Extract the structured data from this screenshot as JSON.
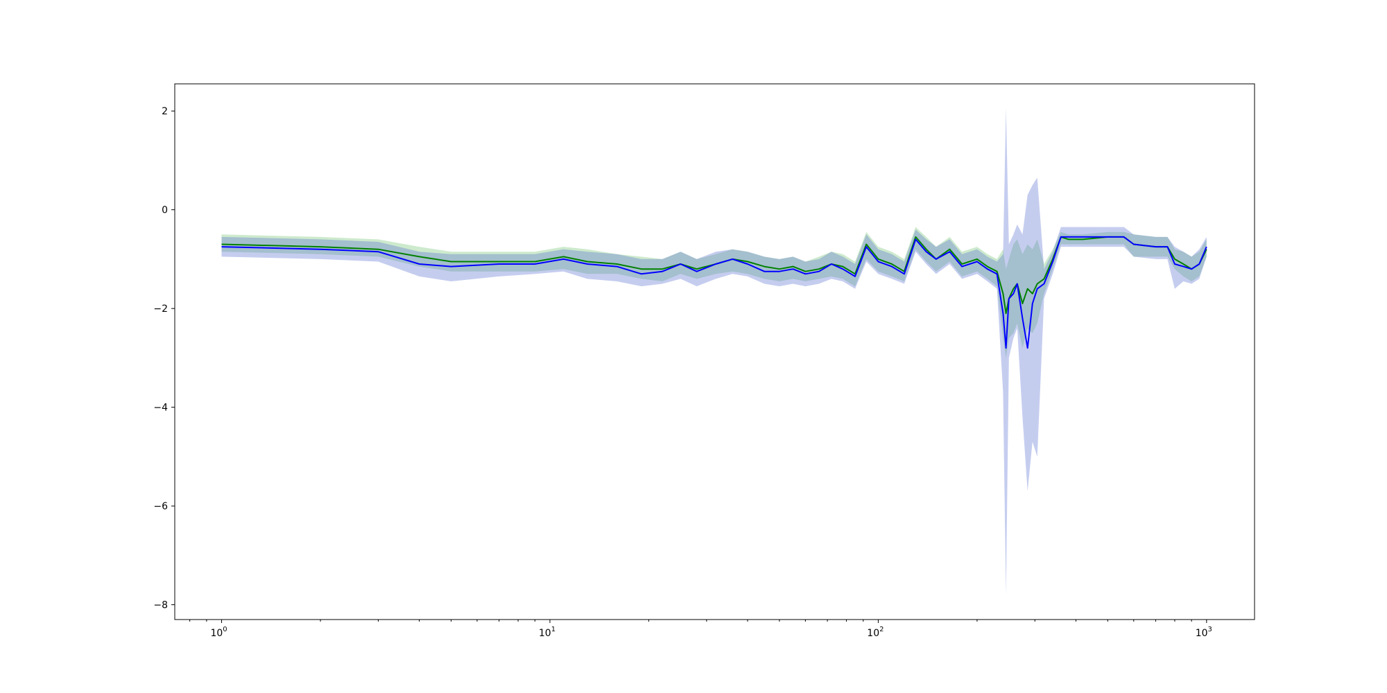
{
  "chart_data": {
    "type": "line",
    "title": "",
    "xlabel": "",
    "ylabel": "",
    "x_scale": "log",
    "xlim": [
      0.72,
      1400
    ],
    "ylim": [
      -8.3,
      2.55
    ],
    "grid": false,
    "legend": "none",
    "x_ticks": [
      {
        "value": 1,
        "base": "10",
        "exp": "0"
      },
      {
        "value": 10,
        "base": "10",
        "exp": "1"
      },
      {
        "value": 100,
        "base": "10",
        "exp": "2"
      },
      {
        "value": 1000,
        "base": "10",
        "exp": "3"
      }
    ],
    "y_ticks": [
      {
        "value": 2,
        "label": "2"
      },
      {
        "value": 0,
        "label": "0"
      },
      {
        "value": -2,
        "label": "−2"
      },
      {
        "value": -4,
        "label": "−4"
      },
      {
        "value": -6,
        "label": "−6"
      },
      {
        "value": -8,
        "label": "−8"
      }
    ],
    "x": [
      1,
      2,
      3,
      4,
      5,
      7,
      9,
      11,
      13,
      16,
      19,
      22,
      25,
      28,
      32,
      36,
      40,
      45,
      50,
      55,
      60,
      66,
      72,
      78,
      85,
      92,
      100,
      110,
      120,
      130,
      140,
      150,
      165,
      180,
      200,
      215,
      230,
      240,
      245,
      250,
      258,
      265,
      275,
      285,
      295,
      305,
      320,
      340,
      360,
      380,
      420,
      500,
      560,
      600,
      700,
      760,
      800,
      850,
      900,
      950,
      1000
    ],
    "series": [
      {
        "color": "#008000",
        "band_color": "#90d090",
        "values": [
          -0.7,
          -0.75,
          -0.8,
          -0.95,
          -1.05,
          -1.05,
          -1.05,
          -0.95,
          -1.05,
          -1.1,
          -1.2,
          -1.2,
          -1.1,
          -1.2,
          -1.1,
          -1.0,
          -1.05,
          -1.15,
          -1.2,
          -1.15,
          -1.25,
          -1.2,
          -1.1,
          -1.15,
          -1.3,
          -0.7,
          -1.0,
          -1.1,
          -1.25,
          -0.55,
          -0.8,
          -1.0,
          -0.8,
          -1.1,
          -1.0,
          -1.15,
          -1.25,
          -1.7,
          -2.1,
          -1.8,
          -1.6,
          -1.5,
          -1.9,
          -1.6,
          -1.7,
          -1.5,
          -1.4,
          -1.0,
          -0.55,
          -0.6,
          -0.6,
          -0.55,
          -0.55,
          -0.7,
          -0.75,
          -0.75,
          -1.0,
          -1.1,
          -1.2,
          -1.1,
          -0.8
        ],
        "lower": [
          -0.85,
          -0.9,
          -0.95,
          -1.15,
          -1.25,
          -1.25,
          -1.25,
          -1.2,
          -1.3,
          -1.3,
          -1.4,
          -1.45,
          -1.3,
          -1.4,
          -1.3,
          -1.25,
          -1.3,
          -1.4,
          -1.45,
          -1.4,
          -1.45,
          -1.4,
          -1.35,
          -1.4,
          -1.55,
          -1.0,
          -1.25,
          -1.35,
          -1.45,
          -0.8,
          -1.05,
          -1.25,
          -1.05,
          -1.35,
          -1.25,
          -1.4,
          -1.55,
          -2.6,
          -3.0,
          -2.6,
          -2.5,
          -2.3,
          -2.8,
          -2.4,
          -2.5,
          -2.3,
          -1.7,
          -1.2,
          -0.7,
          -0.7,
          -0.7,
          -0.7,
          -0.7,
          -0.95,
          -0.95,
          -0.95,
          -1.2,
          -1.35,
          -1.45,
          -1.35,
          -0.95
        ],
        "upper": [
          -0.5,
          -0.55,
          -0.6,
          -0.75,
          -0.85,
          -0.85,
          -0.85,
          -0.75,
          -0.8,
          -0.9,
          -0.95,
          -1.0,
          -0.85,
          -1.0,
          -0.9,
          -0.8,
          -0.85,
          -0.95,
          -1.0,
          -0.95,
          -1.05,
          -0.95,
          -0.85,
          -0.9,
          -1.05,
          -0.45,
          -0.75,
          -0.85,
          -1.0,
          -0.35,
          -0.55,
          -0.75,
          -0.55,
          -0.85,
          -0.75,
          -0.9,
          -1.0,
          -0.8,
          -1.2,
          -1.0,
          -0.7,
          -0.6,
          -0.9,
          -0.7,
          -0.8,
          -0.6,
          -1.1,
          -0.8,
          -0.45,
          -0.5,
          -0.5,
          -0.45,
          -0.45,
          -0.5,
          -0.55,
          -0.55,
          -0.8,
          -0.85,
          -0.95,
          -0.85,
          -0.6
        ]
      },
      {
        "color": "#0000ff",
        "band_color": "#5a6fd0",
        "values": [
          -0.75,
          -0.8,
          -0.85,
          -1.1,
          -1.15,
          -1.1,
          -1.1,
          -1.0,
          -1.1,
          -1.15,
          -1.3,
          -1.25,
          -1.1,
          -1.25,
          -1.1,
          -1.0,
          -1.1,
          -1.25,
          -1.25,
          -1.2,
          -1.3,
          -1.25,
          -1.1,
          -1.2,
          -1.35,
          -0.75,
          -1.05,
          -1.15,
          -1.3,
          -0.6,
          -0.85,
          -1.0,
          -0.85,
          -1.15,
          -1.05,
          -1.2,
          -1.3,
          -2.1,
          -2.8,
          -1.8,
          -1.7,
          -1.5,
          -2.2,
          -2.8,
          -1.9,
          -1.6,
          -1.5,
          -1.05,
          -0.55,
          -0.55,
          -0.55,
          -0.55,
          -0.55,
          -0.7,
          -0.75,
          -0.75,
          -1.1,
          -1.15,
          -1.2,
          -1.1,
          -0.75
        ],
        "lower": [
          -0.95,
          -1.0,
          -1.05,
          -1.35,
          -1.45,
          -1.35,
          -1.3,
          -1.25,
          -1.4,
          -1.45,
          -1.55,
          -1.5,
          -1.4,
          -1.55,
          -1.4,
          -1.3,
          -1.35,
          -1.5,
          -1.55,
          -1.5,
          -1.55,
          -1.5,
          -1.4,
          -1.45,
          -1.6,
          -1.05,
          -1.3,
          -1.4,
          -1.5,
          -0.85,
          -1.1,
          -1.3,
          -1.1,
          -1.4,
          -1.3,
          -1.45,
          -1.6,
          -3.7,
          -7.8,
          -3.0,
          -2.6,
          -2.4,
          -4.2,
          -5.7,
          -4.7,
          -5.0,
          -1.8,
          -1.3,
          -0.75,
          -0.75,
          -0.75,
          -0.75,
          -0.75,
          -0.95,
          -1.0,
          -1.0,
          -1.6,
          -1.45,
          -1.5,
          -1.4,
          -0.95
        ],
        "upper": [
          -0.55,
          -0.6,
          -0.65,
          -0.85,
          -0.9,
          -0.9,
          -0.9,
          -0.8,
          -0.85,
          -0.9,
          -1.0,
          -1.0,
          -0.85,
          -1.0,
          -0.85,
          -0.8,
          -0.85,
          -0.95,
          -1.0,
          -0.95,
          -1.05,
          -1.0,
          -0.85,
          -0.95,
          -1.1,
          -0.5,
          -0.8,
          -0.9,
          -1.05,
          -0.4,
          -0.6,
          -0.75,
          -0.6,
          -0.9,
          -0.8,
          -0.95,
          -1.05,
          -0.9,
          2.05,
          -0.7,
          -0.5,
          -0.3,
          -0.5,
          0.3,
          0.5,
          0.65,
          -1.2,
          -0.85,
          -0.35,
          -0.35,
          -0.35,
          -0.35,
          -0.35,
          -0.5,
          -0.55,
          -0.55,
          -0.75,
          -0.85,
          -0.95,
          -0.8,
          -0.55
        ]
      }
    ]
  }
}
